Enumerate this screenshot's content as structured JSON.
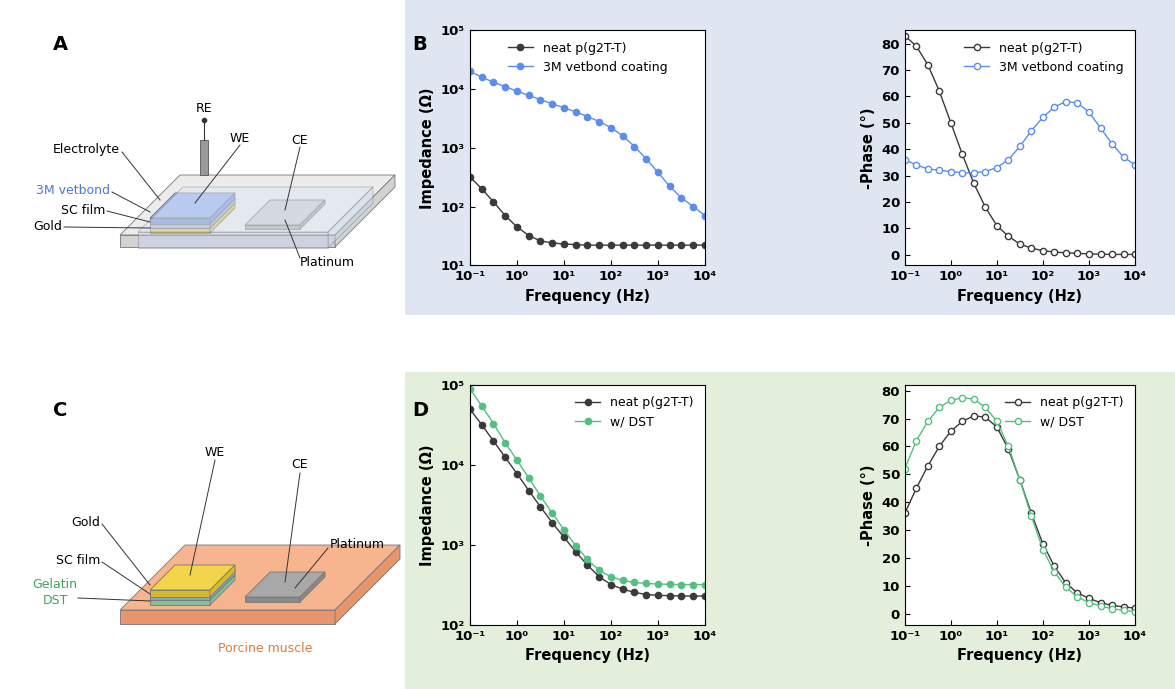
{
  "panel_labels": [
    "A",
    "B",
    "C",
    "D"
  ],
  "diagrams": [
    {
      "labels": [
        "RE",
        "WE",
        "CE",
        "Electrolyte",
        "3M vetbond",
        "SC film",
        "Gold",
        "Platinum"
      ]
    },
    {
      "labels": [
        "WE",
        "CE",
        "Gold",
        "SC film",
        "Gelatin",
        "DST",
        "Platinum",
        "Porcine muscle"
      ]
    }
  ],
  "chart_data": [
    {
      "type": "line",
      "log": true,
      "xlabel": "Frequency (Hz)",
      "ylabel": "Impedance (Ω)",
      "x": [
        0.1,
        0.178,
        0.316,
        0.562,
        1,
        1.78,
        3.16,
        5.62,
        10,
        17.8,
        31.6,
        56.2,
        100,
        178,
        316,
        562,
        1000,
        1780,
        3160,
        5620,
        10000
      ],
      "xlim": [
        0.1,
        10000
      ],
      "xticks": [
        {
          "value": 0.1,
          "label": "10⁻¹"
        },
        {
          "value": 1,
          "label": "10⁰"
        },
        {
          "value": 10,
          "label": "10¹"
        },
        {
          "value": 100,
          "label": "10²"
        },
        {
          "value": 1000,
          "label": "10³"
        },
        {
          "value": 10000,
          "label": "10⁴"
        }
      ],
      "ylim": [
        10,
        100000
      ],
      "yticks": [
        {
          "value": 10,
          "label": "10¹"
        },
        {
          "value": 100,
          "label": "10²"
        },
        {
          "value": 1000,
          "label": "10³"
        },
        {
          "value": 10000,
          "label": "10⁴"
        },
        {
          "value": 100000,
          "label": "10⁵"
        }
      ],
      "legend": "upper center",
      "series": [
        {
          "name": "neat p(g2T-T)",
          "color": "#3a3a3a",
          "marker": "circle",
          "values": [
            320,
            200,
            120,
            70,
            45,
            32,
            26,
            24,
            23,
            22.5,
            22,
            22,
            22,
            22,
            22,
            22,
            22,
            22,
            22,
            22,
            22
          ]
        },
        {
          "name": "3M vetbond coating",
          "color": "#5b8def",
          "marker": "circle",
          "values": [
            20000,
            16000,
            13000,
            11000,
            9200,
            7800,
            6600,
            5600,
            4800,
            4100,
            3400,
            2800,
            2200,
            1600,
            1050,
            650,
            380,
            220,
            140,
            100,
            70
          ]
        }
      ]
    },
    {
      "type": "line",
      "log": "x",
      "xlabel": "Frequency (Hz)",
      "ylabel": "-Phase (°)",
      "x": [
        0.1,
        0.178,
        0.316,
        0.562,
        1,
        1.78,
        3.16,
        5.62,
        10,
        17.8,
        31.6,
        56.2,
        100,
        178,
        316,
        562,
        1000,
        1780,
        3160,
        5620,
        10000
      ],
      "xlim": [
        0.1,
        10000
      ],
      "xticks": [
        {
          "value": 0.1,
          "label": "10⁻¹"
        },
        {
          "value": 1,
          "label": "10⁰"
        },
        {
          "value": 10,
          "label": "10¹"
        },
        {
          "value": 100,
          "label": "10²"
        },
        {
          "value": 1000,
          "label": "10³"
        },
        {
          "value": 10000,
          "label": "10⁴"
        }
      ],
      "ylim": [
        -4,
        85
      ],
      "yticks": [
        0,
        10,
        20,
        30,
        40,
        50,
        60,
        70,
        80
      ],
      "legend": "upper right",
      "series": [
        {
          "name": "neat p(g2T-T)",
          "color": "#3a3a3a",
          "marker": "open_circle",
          "values": [
            83,
            79,
            72,
            62,
            50,
            38,
            27,
            18,
            11,
            7,
            4,
            2.5,
            1.5,
            1,
            0.7,
            0.5,
            0.3,
            0.2,
            0.1,
            0.1,
            0.1
          ]
        },
        {
          "name": "3M vetbond coating",
          "color": "#5b8def",
          "marker": "open_circle",
          "values": [
            36,
            34,
            32.5,
            32,
            31.5,
            31,
            31,
            31.5,
            33,
            36,
            41,
            47,
            52,
            56,
            58,
            57.5,
            54,
            48,
            42,
            37,
            34
          ]
        }
      ]
    },
    {
      "type": "line",
      "log": true,
      "xlabel": "Frequency (Hz)",
      "ylabel": "Impedance (Ω)",
      "x": [
        0.1,
        0.178,
        0.316,
        0.562,
        1,
        1.78,
        3.16,
        5.62,
        10,
        17.8,
        31.6,
        56.2,
        100,
        178,
        316,
        562,
        1000,
        1780,
        3160,
        5620,
        10000
      ],
      "xlim": [
        0.1,
        10000
      ],
      "xticks": [
        {
          "value": 0.1,
          "label": "10⁻¹"
        },
        {
          "value": 1,
          "label": "10⁰"
        },
        {
          "value": 10,
          "label": "10¹"
        },
        {
          "value": 100,
          "label": "10²"
        },
        {
          "value": 1000,
          "label": "10³"
        },
        {
          "value": 10000,
          "label": "10⁴"
        }
      ],
      "ylim": [
        100,
        100000
      ],
      "yticks": [
        {
          "value": 100,
          "label": "10²"
        },
        {
          "value": 1000,
          "label": "10³"
        },
        {
          "value": 10000,
          "label": "10⁴"
        },
        {
          "value": 100000,
          "label": "10⁵"
        }
      ],
      "legend": "upper right",
      "series": [
        {
          "name": "neat p(g2T-T)",
          "color": "#3a3a3a",
          "marker": "circle",
          "values": [
            50000,
            32000,
            20000,
            12500,
            7800,
            4800,
            3000,
            1900,
            1250,
            820,
            560,
            400,
            320,
            280,
            255,
            240,
            235,
            232,
            230,
            230,
            230
          ]
        },
        {
          "name": "w/ DST",
          "color": "#52c07f",
          "marker": "circle",
          "values": [
            90000,
            55000,
            33000,
            19000,
            11500,
            6900,
            4100,
            2500,
            1550,
            980,
            660,
            480,
            400,
            360,
            340,
            330,
            325,
            322,
            320,
            320,
            320
          ]
        }
      ]
    },
    {
      "type": "line",
      "log": "x",
      "xlabel": "Frequency (Hz)",
      "ylabel": "-Phase (°)",
      "x": [
        0.1,
        0.178,
        0.316,
        0.562,
        1,
        1.78,
        3.16,
        5.62,
        10,
        17.8,
        31.6,
        56.2,
        100,
        178,
        316,
        562,
        1000,
        1780,
        3160,
        5620,
        10000
      ],
      "xlim": [
        0.1,
        10000
      ],
      "xticks": [
        {
          "value": 0.1,
          "label": "10⁻¹"
        },
        {
          "value": 1,
          "label": "10⁰"
        },
        {
          "value": 10,
          "label": "10¹"
        },
        {
          "value": 100,
          "label": "10²"
        },
        {
          "value": 1000,
          "label": "10³"
        },
        {
          "value": 10000,
          "label": "10⁴"
        }
      ],
      "ylim": [
        -4,
        82
      ],
      "yticks": [
        0,
        10,
        20,
        30,
        40,
        50,
        60,
        70,
        80
      ],
      "legend": "upper right",
      "series": [
        {
          "name": "neat p(g2T-T)",
          "color": "#3a3a3a",
          "marker": "open_circle",
          "values": [
            36,
            45,
            53,
            60,
            65.5,
            69,
            71,
            70.5,
            67,
            59,
            48,
            36,
            25,
            17,
            11,
            7.5,
            5.5,
            4,
            3,
            2.5,
            2
          ]
        },
        {
          "name": "w/ DST",
          "color": "#52c07f",
          "marker": "open_circle",
          "values": [
            52,
            62,
            69,
            74,
            76.5,
            77.5,
            77,
            74,
            69,
            60,
            48,
            35,
            23,
            15,
            9.5,
            6,
            4,
            2.8,
            1.8,
            1.2,
            0.8
          ]
        }
      ]
    }
  ]
}
